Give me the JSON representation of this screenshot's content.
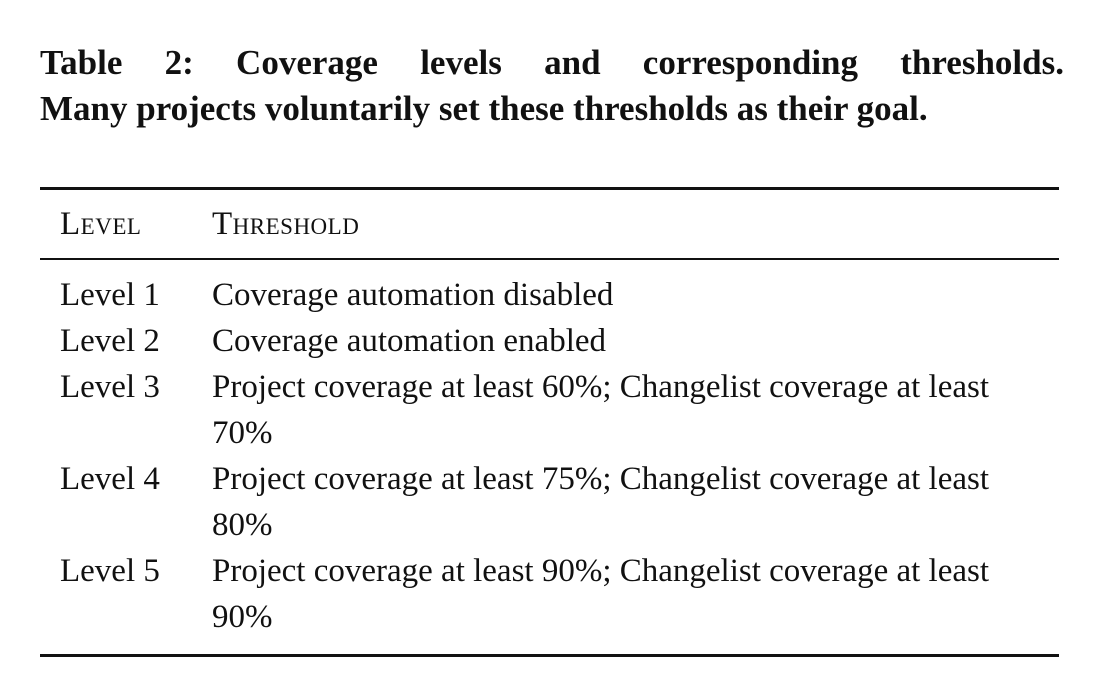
{
  "caption": {
    "line1": "Table 2: Coverage levels and corresponding thresholds.",
    "line2": "Many projects voluntarily set these thresholds as their goal."
  },
  "table": {
    "headers": {
      "level": "Level",
      "threshold": "Threshold"
    },
    "rows": [
      {
        "level": "Level 1",
        "threshold": "Coverage automation disabled"
      },
      {
        "level": "Level 2",
        "threshold": "Coverage automation enabled"
      },
      {
        "level": "Level 3",
        "threshold": "Project coverage at least 60%; Changelist coverage at least 70%"
      },
      {
        "level": "Level 4",
        "threshold": "Project coverage at least 75%; Changelist coverage at least 80%"
      },
      {
        "level": "Level 5",
        "threshold": "Project coverage at least 90%; Changelist coverage at least 90%"
      }
    ]
  }
}
